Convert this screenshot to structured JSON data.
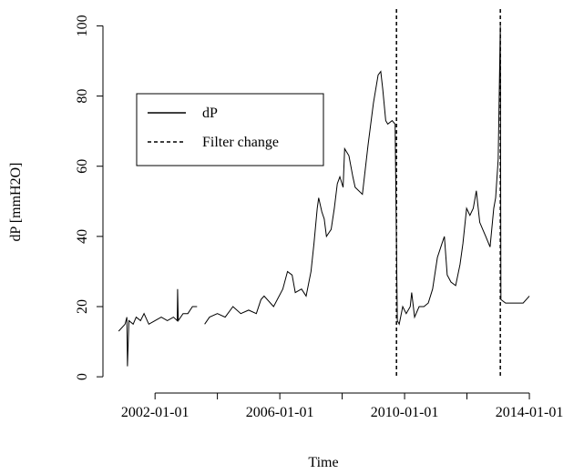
{
  "chart_data": {
    "type": "line",
    "xlabel": "Time",
    "ylabel": "dP [mmH2O]",
    "xlim": [
      "2000-05-01",
      "2014-07-01"
    ],
    "ylim": [
      -1,
      104
    ],
    "xticks": [
      "2002-01-01",
      {
        "value": "2004-01-01",
        "label": null
      },
      "2006-01-01",
      {
        "value": "2008-01-01",
        "label": null
      },
      "2010-01-01",
      {
        "value": "2012-01-01",
        "label": null
      },
      "2014-01-01"
    ],
    "yticks": [
      0,
      20,
      40,
      60,
      80,
      100
    ],
    "series": [
      {
        "name": "dP",
        "color": "#000000",
        "dashed": false,
        "x": [
          "2000-11-01",
          "2001-01-15",
          "2001-02-05",
          "2001-02-12",
          "2001-03-01",
          "2001-04-20",
          "2001-05-25",
          "2001-07-15",
          "2001-08-25",
          "2001-10-20",
          "2002-01-01",
          "2002-03-15",
          "2002-05-25",
          "2002-08-05",
          "2002-09-18",
          "2002-09-22",
          "2002-09-30",
          "2002-11-25",
          "2003-01-20",
          "2003-03-15",
          "2003-05-08",
          "2003-06-15",
          "2003-08-05",
          "2003-10-01",
          "2004-01-01",
          "2004-04-01",
          "2004-07-01",
          "2004-10-01",
          "2005-01-01",
          "2005-04-01",
          "2005-05-25",
          "2005-07-01",
          "2005-10-20",
          "2006-02-05",
          "2006-04-01",
          "2006-05-25",
          "2006-07-01",
          "2006-09-12",
          "2006-11-05",
          "2007-01-01",
          "2007-02-05",
          "2007-03-15",
          "2007-04-01",
          "2007-05-08",
          "2007-06-05",
          "2007-07-01",
          "2007-08-25",
          "2007-10-01",
          "2007-11-05",
          "2007-12-05",
          "2008-01-12",
          "2008-01-30",
          "2008-03-20",
          "2008-05-05",
          "2008-06-01",
          "2008-08-25",
          "2008-10-30",
          "2009-01-01",
          "2009-02-25",
          "2009-03-28",
          "2009-04-20",
          "2009-05-25",
          "2009-06-18",
          "2009-08-08",
          "2009-09-12",
          "2009-10-08",
          "2009-10-30",
          "2009-12-10",
          "2010-01-20",
          "2010-03-08",
          "2010-03-25",
          "2010-04-28",
          "2010-06-20",
          "2010-08-15",
          "2010-10-05",
          "2010-11-25",
          "2011-01-20",
          "2011-03-15",
          "2011-04-12",
          "2011-05-15",
          "2011-06-28",
          "2011-08-22",
          "2011-10-12",
          "2011-11-15",
          "2011-12-28",
          "2012-02-05",
          "2012-03-15",
          "2012-04-20",
          "2012-05-30",
          "2012-08-08",
          "2012-09-28",
          "2012-11-10",
          "2012-12-02",
          "2013-01-01",
          "2013-01-26",
          "2013-02-02",
          "2013-03-28",
          "2013-07-12",
          "2013-10-20",
          "2014-01-01"
        ],
        "values": [
          13,
          15,
          17,
          3,
          16,
          15,
          17,
          16,
          18,
          15,
          16,
          17,
          16,
          17,
          16,
          25,
          16,
          18,
          18,
          20,
          20,
          null,
          15,
          17,
          18,
          17,
          20,
          18,
          19,
          18,
          22,
          23,
          20,
          25,
          30,
          29,
          24,
          25,
          23,
          30,
          38,
          48,
          51,
          47,
          45,
          40,
          42,
          48,
          55,
          57,
          54,
          65,
          63,
          57,
          54,
          52,
          66,
          78,
          86,
          87,
          82,
          73,
          72,
          73,
          72,
          16,
          15,
          20,
          18,
          20,
          24,
          17,
          20,
          20,
          21,
          25,
          34,
          38,
          40,
          29,
          27,
          26,
          32,
          38,
          48,
          46,
          48,
          53,
          44,
          40,
          37,
          48,
          51,
          62,
          100,
          22,
          21,
          21,
          21,
          23
        ]
      },
      {
        "name": "Filter change",
        "color": "#000000",
        "dashed": true,
        "x": [
          "2009-09-28",
          "2013-01-26"
        ]
      }
    ]
  }
}
